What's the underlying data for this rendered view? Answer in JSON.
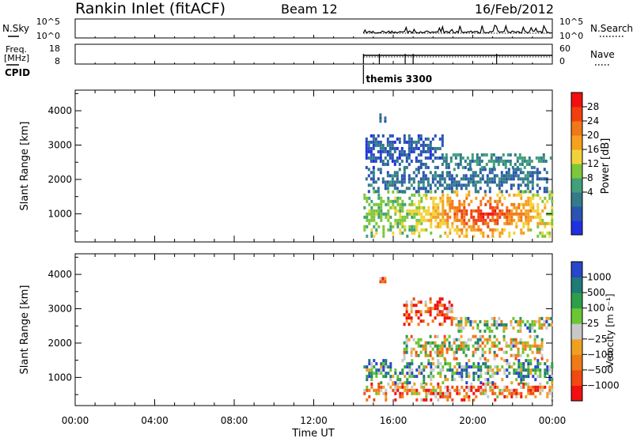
{
  "header": {
    "station": "Rankin Inlet (fitACF)",
    "beam": "Beam 12",
    "date": "16/Feb/2012"
  },
  "colors": {
    "power": [
      "#2030e0",
      "#2a54b0",
      "#337a8a",
      "#3fa07a",
      "#7cc73a",
      "#f2d23a",
      "#f5a020",
      "#f07818",
      "#f04010",
      "#f01010"
    ],
    "velocity": [
      "#2846c8",
      "#1f7a78",
      "#2e9e4a",
      "#6bc634",
      "#c8c8c8",
      "#f0a020",
      "#f07a18",
      "#f04a12",
      "#f01010"
    ]
  },
  "chart_data": [
    {
      "type": "line",
      "id": "nsky-nsearch",
      "left_label": "N.Sky",
      "right_label": "N.Search",
      "left_ticks": [
        "10^5",
        "10^0"
      ],
      "right_ticks": [
        "10^5",
        "10^0"
      ],
      "x_range_hours": [
        0,
        24
      ],
      "data_start_hour": 14.5,
      "series": [
        {
          "name": "N.Sky",
          "style": "solid"
        },
        {
          "name": "N.Search",
          "style": "dotted"
        }
      ]
    },
    {
      "type": "line",
      "id": "freq-nave",
      "left_label": "Freq.",
      "left_unit": "[MHz]",
      "right_label": "Nave",
      "left_ticks": [
        "18",
        "8"
      ],
      "right_ticks": [
        "60",
        "0"
      ],
      "x_range_hours": [
        0,
        24
      ],
      "data_start_hour": 14.5,
      "series": [
        {
          "name": "Freq.",
          "style": "solid",
          "value_mhz": 12
        },
        {
          "name": "Nave",
          "style": "dotted",
          "value": 30
        }
      ]
    },
    {
      "type": "table",
      "id": "cpid",
      "label": "CPID",
      "entries": [
        {
          "start_hour": 14.5,
          "name": "themis 3300"
        }
      ]
    },
    {
      "type": "heatmap",
      "id": "power",
      "ylabel": "Slant Range [km]",
      "y_ticks": [
        1000,
        2000,
        3000,
        4000
      ],
      "ylim": [
        180,
        4600
      ],
      "x_range_hours": [
        0,
        24
      ],
      "colorbar_label": "Power [dB]",
      "colorbar_ticks": [
        "28",
        "24",
        "20",
        "16",
        "12",
        "8",
        "4"
      ],
      "bands": [
        {
          "x": [
            14.5,
            24
          ],
          "y": [
            300,
            1600
          ],
          "scale_value": 14,
          "peak_x": 20.5,
          "peak_value": 30
        },
        {
          "x": [
            14.6,
            23.7
          ],
          "y": [
            1600,
            2300
          ],
          "scale_value": 7
        },
        {
          "x": [
            14.6,
            18.5
          ],
          "y": [
            2300,
            3300
          ],
          "scale_value": 5
        },
        {
          "x": [
            18.5,
            23.9
          ],
          "y": [
            2300,
            2700
          ],
          "scale_value": 9
        },
        {
          "x": [
            15.3,
            15.6
          ],
          "y": [
            3650,
            3900
          ],
          "scale_value": 6
        }
      ]
    },
    {
      "type": "heatmap",
      "id": "velocity",
      "ylabel": "Slant Range [km]",
      "y_ticks": [
        1000,
        2000,
        3000,
        4000
      ],
      "ylim": [
        180,
        4600
      ],
      "x_range_hours": [
        0,
        24
      ],
      "colorbar_label": "Velocity [m s⁻¹]",
      "colorbar_ticks": [
        "1000",
        "500",
        "100",
        "25",
        "−25",
        "−100",
        "−500",
        "−1000"
      ],
      "bands": [
        {
          "x": [
            14.5,
            24
          ],
          "y": [
            300,
            800
          ],
          "scale_value": 6
        },
        {
          "x": [
            14.5,
            24
          ],
          "y": [
            800,
            1500
          ],
          "scale_value": 2
        },
        {
          "x": [
            16.5,
            23.5
          ],
          "y": [
            1500,
            2200
          ],
          "scale_value": 4
        },
        {
          "x": [
            16.5,
            19.0
          ],
          "y": [
            2500,
            3300
          ],
          "scale_value": 7
        },
        {
          "x": [
            19.0,
            23.9
          ],
          "y": [
            2300,
            2700
          ],
          "scale_value": 3
        },
        {
          "x": [
            15.3,
            15.6
          ],
          "y": [
            3650,
            3900
          ],
          "scale_value": 6
        }
      ]
    }
  ],
  "x_axis": {
    "label": "Time UT",
    "ticks": [
      "00:00",
      "04:00",
      "08:00",
      "12:00",
      "16:00",
      "20:00",
      "00:00"
    ]
  }
}
